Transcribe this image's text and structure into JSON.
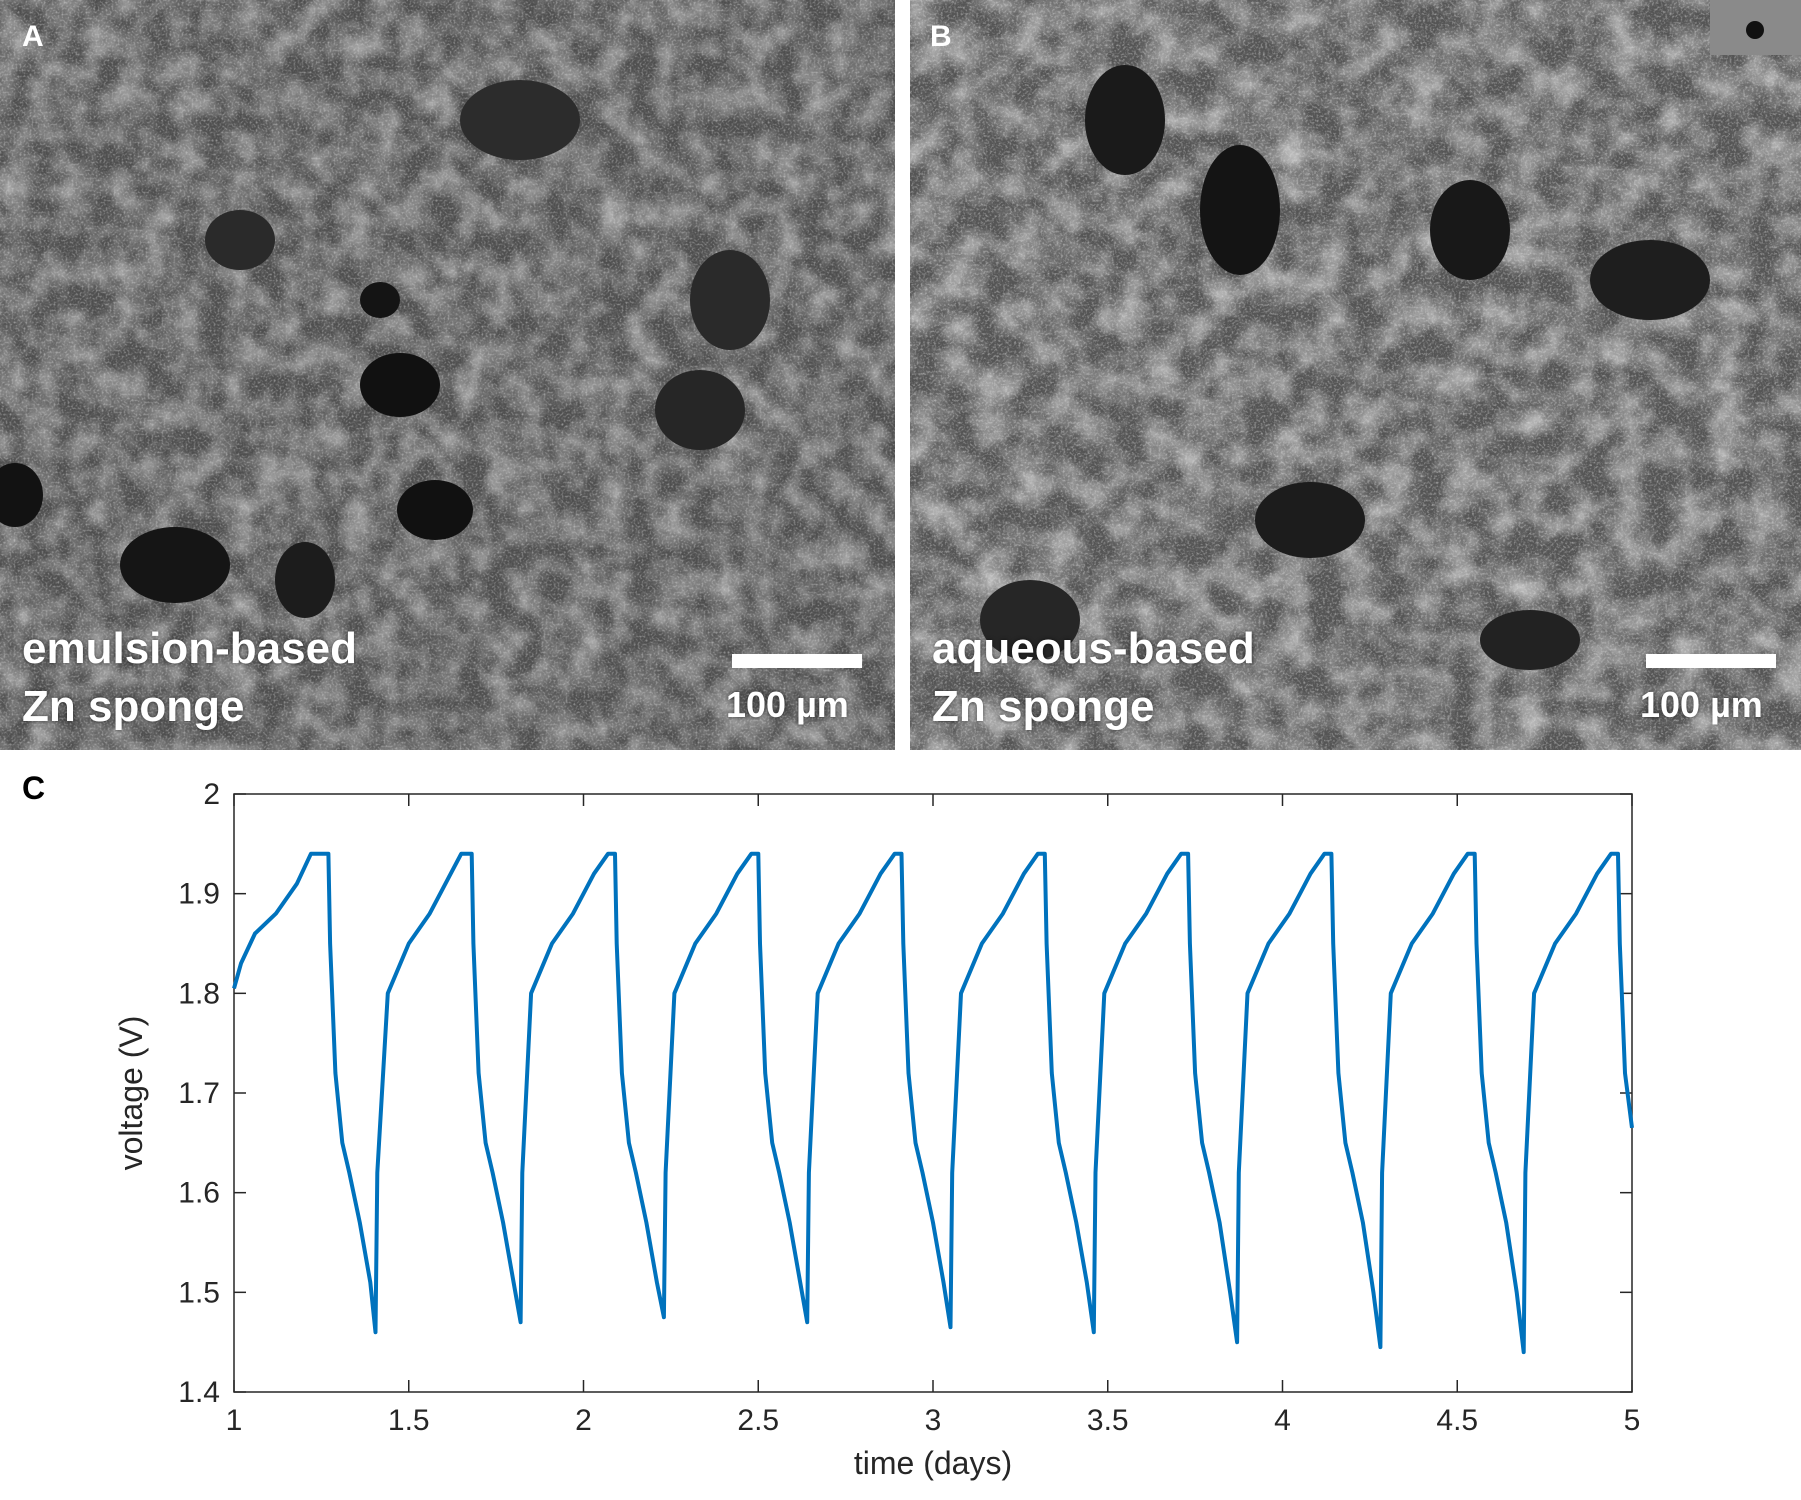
{
  "panels": {
    "a": {
      "letter": "A",
      "caption_line1": "emulsion-based",
      "caption_line2": "Zn sponge",
      "scale_label": "100 µm"
    },
    "b": {
      "letter": "B",
      "caption_line1": "aqueous-based",
      "caption_line2": "Zn sponge",
      "scale_label": "100 µm"
    },
    "c": {
      "letter": "C"
    }
  },
  "colors": {
    "line": "#0072BD",
    "axis": "#262626",
    "sem_bg": "#5a5a5a"
  },
  "chart_data": {
    "type": "line",
    "xlabel": "time (days)",
    "ylabel": "voltage (V)",
    "xlim": [
      1,
      5
    ],
    "ylim": [
      1.4,
      2.0
    ],
    "xticks": [
      "1",
      "1.5",
      "2",
      "2.5",
      "3",
      "3.5",
      "4",
      "4.5",
      "5"
    ],
    "yticks": [
      "1.4",
      "1.5",
      "1.6",
      "1.7",
      "1.8",
      "1.9",
      "2"
    ],
    "grid": false,
    "series": [
      {
        "x": [
          1.0,
          1.02,
          1.06,
          1.12,
          1.18,
          1.22,
          1.25,
          1.27,
          1.275,
          1.29,
          1.31,
          1.33,
          1.36,
          1.39,
          1.405,
          1.41,
          1.44,
          1.5,
          1.56,
          1.62,
          1.65,
          1.68,
          1.685,
          1.7,
          1.72,
          1.74,
          1.77,
          1.8,
          1.82,
          1.825,
          1.85,
          1.91,
          1.97,
          2.03,
          2.07,
          2.09,
          2.095,
          2.11,
          2.13,
          2.15,
          2.18,
          2.21,
          2.23,
          2.235,
          2.26,
          2.32,
          2.38,
          2.44,
          2.48,
          2.5,
          2.505,
          2.52,
          2.54,
          2.56,
          2.59,
          2.62,
          2.64,
          2.645,
          2.67,
          2.73,
          2.79,
          2.85,
          2.89,
          2.91,
          2.915,
          2.93,
          2.95,
          2.97,
          3.0,
          3.03,
          3.05,
          3.055,
          3.08,
          3.14,
          3.2,
          3.26,
          3.3,
          3.32,
          3.325,
          3.34,
          3.36,
          3.38,
          3.41,
          3.44,
          3.46,
          3.465,
          3.49,
          3.55,
          3.61,
          3.67,
          3.71,
          3.73,
          3.735,
          3.75,
          3.77,
          3.79,
          3.82,
          3.85,
          3.87,
          3.875,
          3.9,
          3.96,
          4.02,
          4.08,
          4.12,
          4.14,
          4.145,
          4.16,
          4.18,
          4.2,
          4.23,
          4.26,
          4.28,
          4.285,
          4.31,
          4.37,
          4.43,
          4.49,
          4.53,
          4.55,
          4.555,
          4.57,
          4.59,
          4.61,
          4.64,
          4.67,
          4.69,
          4.695,
          4.72,
          4.78,
          4.84,
          4.9,
          4.94,
          4.96,
          4.965,
          4.98,
          5.0
        ],
        "y": [
          1.805,
          1.83,
          1.86,
          1.88,
          1.91,
          1.94,
          1.94,
          1.94,
          1.85,
          1.72,
          1.65,
          1.62,
          1.57,
          1.51,
          1.46,
          1.62,
          1.8,
          1.85,
          1.88,
          1.92,
          1.94,
          1.94,
          1.85,
          1.72,
          1.65,
          1.62,
          1.57,
          1.51,
          1.47,
          1.62,
          1.8,
          1.85,
          1.88,
          1.92,
          1.94,
          1.94,
          1.85,
          1.72,
          1.65,
          1.62,
          1.57,
          1.51,
          1.475,
          1.62,
          1.8,
          1.85,
          1.88,
          1.92,
          1.94,
          1.94,
          1.85,
          1.72,
          1.65,
          1.62,
          1.57,
          1.51,
          1.47,
          1.62,
          1.8,
          1.85,
          1.88,
          1.92,
          1.94,
          1.94,
          1.85,
          1.72,
          1.65,
          1.62,
          1.57,
          1.51,
          1.465,
          1.62,
          1.8,
          1.85,
          1.88,
          1.92,
          1.94,
          1.94,
          1.85,
          1.72,
          1.65,
          1.62,
          1.57,
          1.51,
          1.46,
          1.62,
          1.8,
          1.85,
          1.88,
          1.92,
          1.94,
          1.94,
          1.85,
          1.72,
          1.65,
          1.62,
          1.57,
          1.5,
          1.45,
          1.62,
          1.8,
          1.85,
          1.88,
          1.92,
          1.94,
          1.94,
          1.85,
          1.72,
          1.65,
          1.62,
          1.57,
          1.5,
          1.445,
          1.62,
          1.8,
          1.85,
          1.88,
          1.92,
          1.94,
          1.94,
          1.85,
          1.72,
          1.65,
          1.62,
          1.57,
          1.5,
          1.44,
          1.62,
          1.8,
          1.85,
          1.88,
          1.92,
          1.94,
          1.94,
          1.85,
          1.72,
          1.665
        ]
      }
    ]
  }
}
